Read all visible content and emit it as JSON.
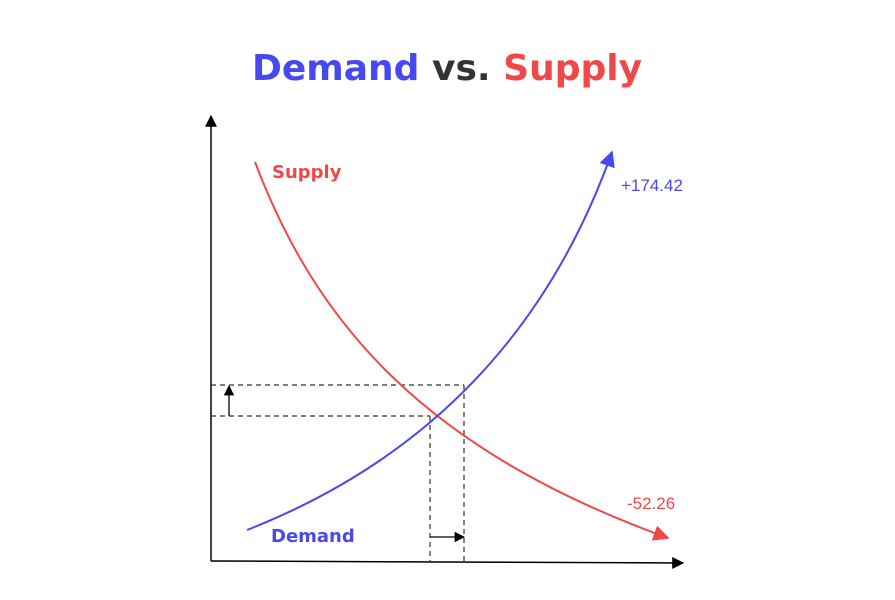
{
  "title": [
    "Demand",
    "vs.",
    "Supply"
  ],
  "curves": [
    {
      "label": "Supply",
      "annotation": "-52.26"
    },
    {
      "label": "Demand",
      "annotation": "+174.42"
    }
  ]
}
